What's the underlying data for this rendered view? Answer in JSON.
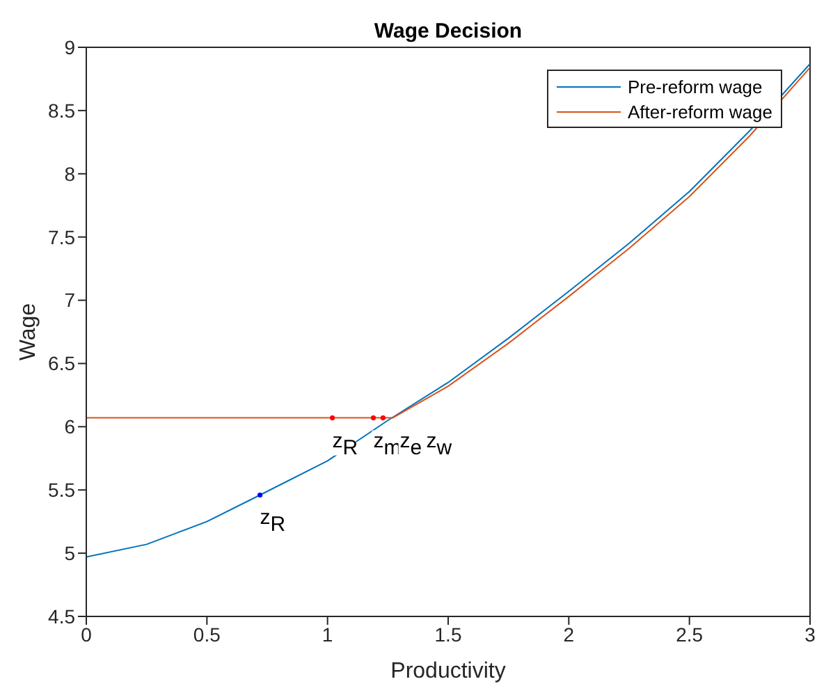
{
  "chart_data": {
    "type": "line",
    "title": "Wage Decision",
    "xlabel": "Productivity",
    "ylabel": "Wage",
    "xlim": [
      0,
      3
    ],
    "xticks": [
      0,
      0.5,
      1,
      1.5,
      2,
      2.5,
      3
    ],
    "ylim": [
      4.5,
      9
    ],
    "yticks": [
      4.5,
      5,
      5.5,
      6,
      6.5,
      7,
      7.5,
      8,
      8.5,
      9
    ],
    "grid": false,
    "legend": "top right",
    "line_style": "solid",
    "series": [
      {
        "name": "Pre-reform wage",
        "color": "#0072bd",
        "x": [
          0,
          0.25,
          0.5,
          0.72,
          1,
          1.25,
          1.5,
          1.75,
          2,
          2.25,
          2.5,
          2.75,
          3
        ],
        "values": [
          4.97,
          5.07,
          5.25,
          5.46,
          5.73,
          6.05,
          6.35,
          6.7,
          7.07,
          7.45,
          7.86,
          8.34,
          8.87
        ]
      },
      {
        "name": "After-reform wage",
        "color": "#d95319",
        "x": [
          0,
          1.02,
          1.19,
          1.27,
          1.5,
          1.75,
          2,
          2.25,
          2.5,
          2.75,
          3
        ],
        "values": [
          6.07,
          6.07,
          6.07,
          6.07,
          6.32,
          6.66,
          7.03,
          7.41,
          7.82,
          8.3,
          8.84
        ]
      },
      {
        "type": "scatter",
        "marker": "circle",
        "color": "#0000ff",
        "x": [
          0.72
        ],
        "values": [
          5.46
        ]
      },
      {
        "type": "scatter",
        "marker": "circle",
        "color": "#ff0000",
        "x": [
          1.02,
          1.19,
          1.23
        ],
        "values": [
          6.07,
          6.07,
          6.07
        ]
      }
    ],
    "annotations": [
      {
        "text": "z$_{R}$",
        "x": 0.72,
        "y": 5.46
      },
      {
        "text": "z$_{R}$",
        "x": 1.02,
        "y": 6.07
      },
      {
        "text": "z$_{m}$",
        "x": 1.19,
        "y": 6.07
      },
      {
        "text": "z$_{e}$",
        "x": 1.19,
        "y": 6.07
      },
      {
        "text": "z$_{w}$",
        "x": 1.23,
        "y": 6.07
      }
    ]
  }
}
